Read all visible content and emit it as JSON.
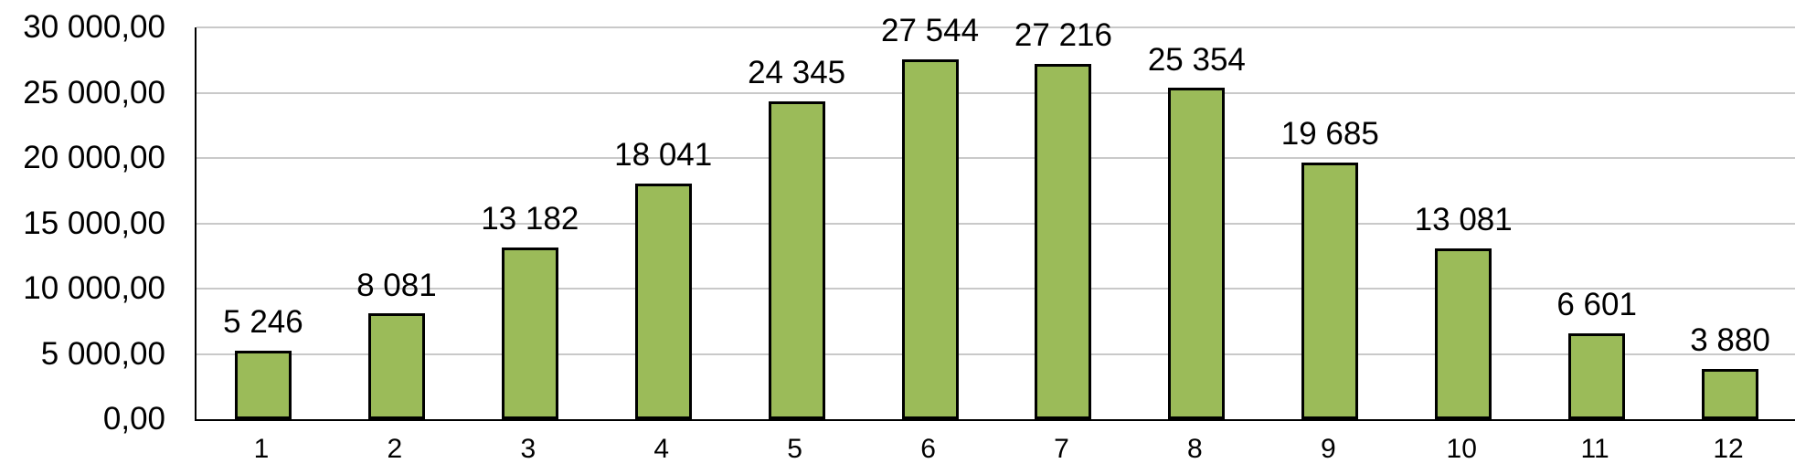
{
  "chart_data": {
    "type": "bar",
    "title": "",
    "xlabel": "",
    "ylabel": "",
    "categories": [
      "1",
      "2",
      "3",
      "4",
      "5",
      "6",
      "7",
      "8",
      "9",
      "10",
      "11",
      "12"
    ],
    "values": [
      5246,
      8081,
      13182,
      18041,
      24345,
      27544,
      27216,
      25354,
      19685,
      13081,
      6601,
      3880
    ],
    "bar_labels": [
      "5 246",
      "8 081",
      "13 182",
      "18 041",
      "24 345",
      "27 544",
      "27 216",
      "25 354",
      "19 685",
      "13 081",
      "6 601",
      "3 880"
    ],
    "ylim": [
      0,
      30000
    ],
    "y_tick_interval": 5000,
    "y_ticks": [
      {
        "value": 0,
        "label": "0,00"
      },
      {
        "value": 5000,
        "label": "5 000,00"
      },
      {
        "value": 10000,
        "label": "10 000,00"
      },
      {
        "value": 15000,
        "label": "15 000,00"
      },
      {
        "value": 20000,
        "label": "20 000,00"
      },
      {
        "value": 25000,
        "label": "25 000,00"
      },
      {
        "value": 30000,
        "label": "30 000,00"
      }
    ],
    "grid": "horizontal",
    "legend_position": "none",
    "colors": {
      "bar_fill": "#9BBB59",
      "bar_border": "#000000",
      "gridline": "#C9C9C9",
      "axis_line": "#000000",
      "label_text": "#000000",
      "background": "#FFFFFF"
    }
  }
}
